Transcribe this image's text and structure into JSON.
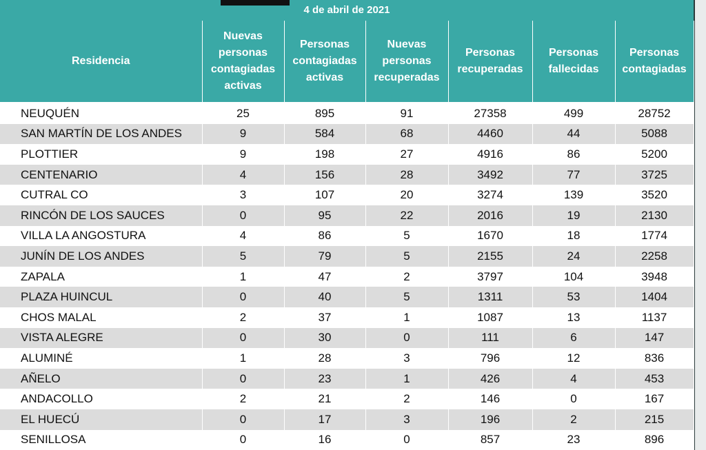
{
  "header": {
    "date": "4 de abril de 2021"
  },
  "table": {
    "columns": [
      "Residencia",
      "Nuevas personas contagiadas activas",
      "Personas contagiadas activas",
      "Nuevas personas recuperadas",
      "Personas recuperadas",
      "Personas fallecidas",
      "Personas contagiadas"
    ],
    "rows": [
      [
        "NEUQUÉN",
        25,
        895,
        91,
        27358,
        499,
        28752
      ],
      [
        "SAN MARTÍN DE LOS ANDES",
        9,
        584,
        68,
        4460,
        44,
        5088
      ],
      [
        "PLOTTIER",
        9,
        198,
        27,
        4916,
        86,
        5200
      ],
      [
        "CENTENARIO",
        4,
        156,
        28,
        3492,
        77,
        3725
      ],
      [
        "CUTRAL CO",
        3,
        107,
        20,
        3274,
        139,
        3520
      ],
      [
        "RINCÓN DE LOS SAUCES",
        0,
        95,
        22,
        2016,
        19,
        2130
      ],
      [
        "VILLA LA ANGOSTURA",
        4,
        86,
        5,
        1670,
        18,
        1774
      ],
      [
        "JUNÍN DE LOS ANDES",
        5,
        79,
        5,
        2155,
        24,
        2258
      ],
      [
        "ZAPALA",
        1,
        47,
        2,
        3797,
        104,
        3948
      ],
      [
        "PLAZA HUINCUL",
        0,
        40,
        5,
        1311,
        53,
        1404
      ],
      [
        "CHOS MALAL",
        2,
        37,
        1,
        1087,
        13,
        1137
      ],
      [
        "VISTA ALEGRE",
        0,
        30,
        0,
        111,
        6,
        147
      ],
      [
        "ALUMINÉ",
        1,
        28,
        3,
        796,
        12,
        836
      ],
      [
        "AÑELO",
        0,
        23,
        1,
        426,
        4,
        453
      ],
      [
        "ANDACOLLO",
        2,
        21,
        2,
        146,
        0,
        167
      ],
      [
        "EL HUECÚ",
        0,
        17,
        3,
        196,
        2,
        215
      ],
      [
        "SENILLOSA",
        0,
        16,
        0,
        857,
        23,
        896
      ]
    ]
  }
}
